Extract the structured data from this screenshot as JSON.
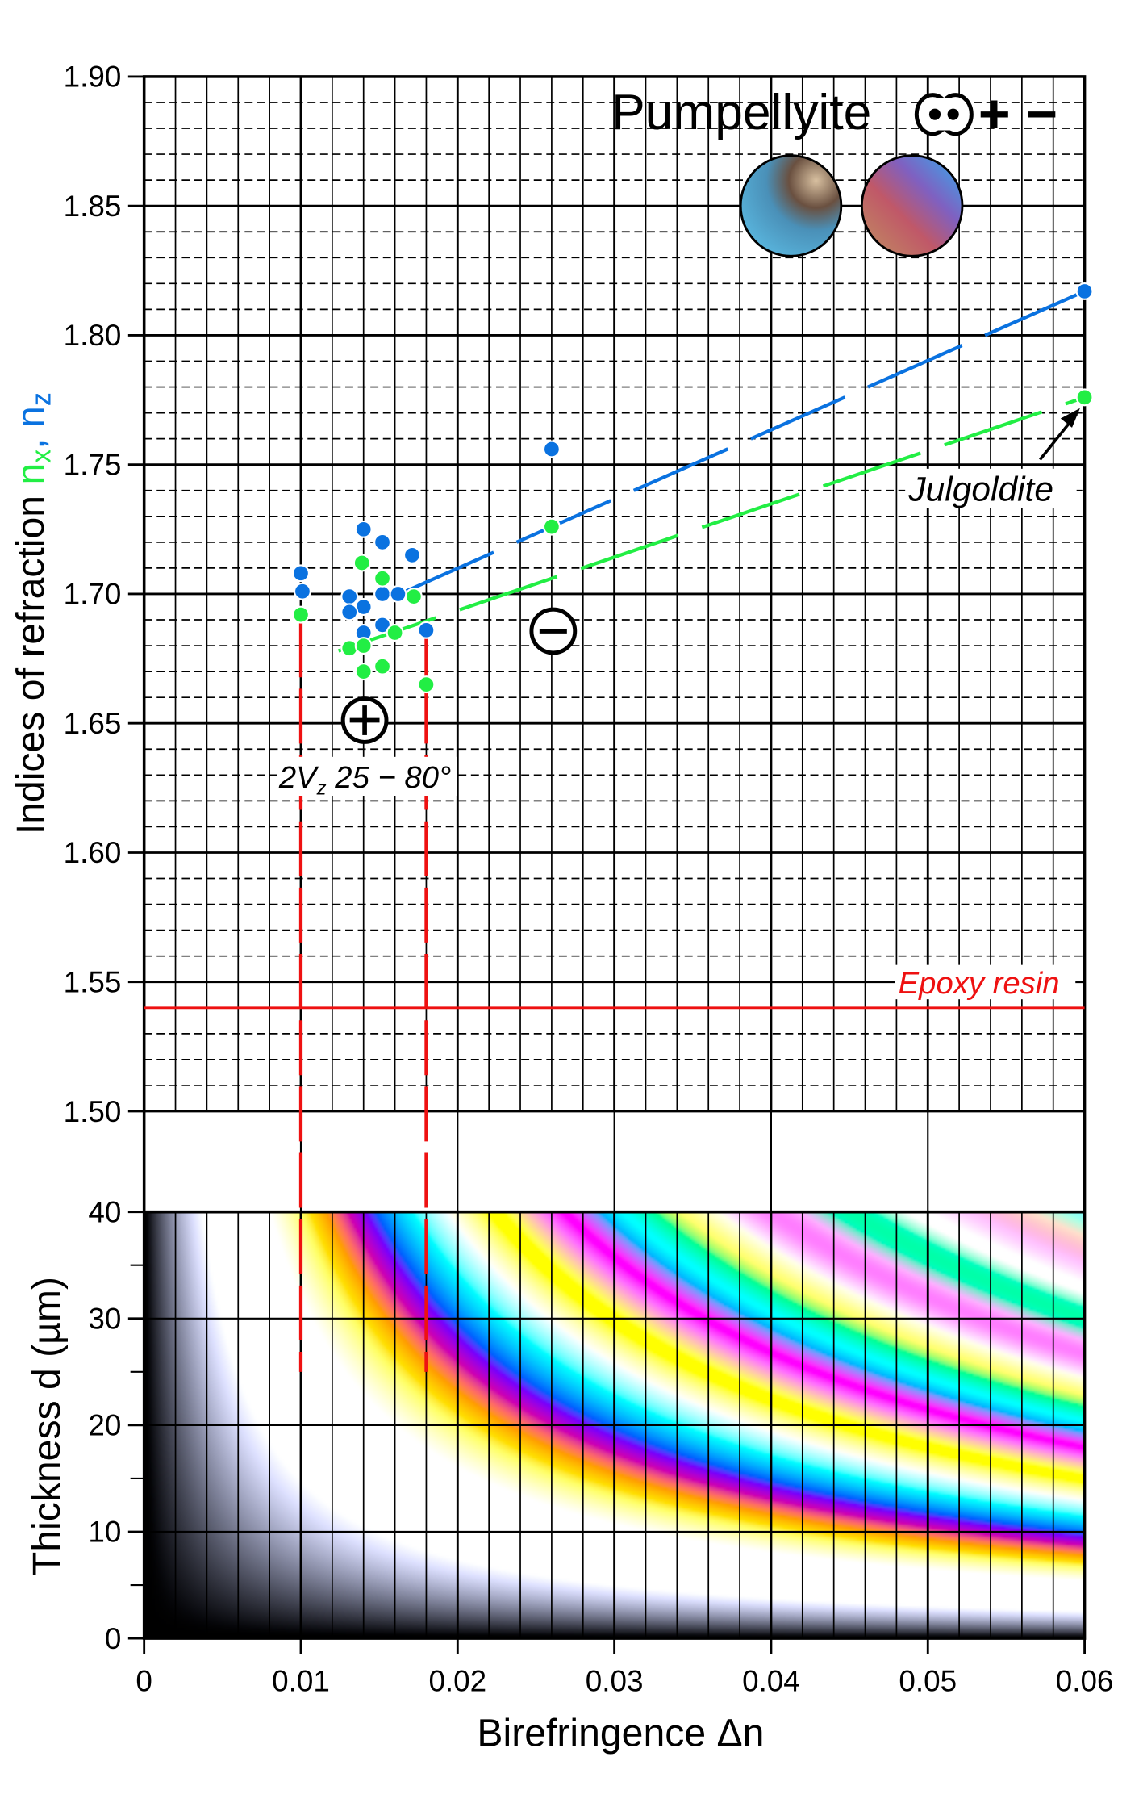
{
  "chart_data": [
    {
      "type": "scatter",
      "title": "Pumpellyite",
      "title_symbols": "+ −",
      "ylabel": "Indices of refraction",
      "ylabel_nx": "n",
      "ylabel_nx_sub": "x",
      "ylabel_sep": ",",
      "ylabel_nz": "n",
      "ylabel_nz_sub": "z",
      "xlim": [
        0,
        0.06
      ],
      "ylim": [
        1.5,
        1.9
      ],
      "yticks": [
        "1.50",
        "1.55",
        "1.60",
        "1.65",
        "1.70",
        "1.75",
        "1.80",
        "1.85",
        "1.90"
      ],
      "grid": true,
      "colors": {
        "nx": "#22ee44",
        "nz": "#0a72e0",
        "epoxy": "#ee1111"
      },
      "series": [
        {
          "key": "nz",
          "points": [
            [
              0.01,
              1.708
            ],
            [
              0.0101,
              1.701
            ],
            [
              0.014,
              1.725
            ],
            [
              0.0152,
              1.72
            ],
            [
              0.0171,
              1.715
            ],
            [
              0.0131,
              1.699
            ],
            [
              0.014,
              1.695
            ],
            [
              0.0131,
              1.693
            ],
            [
              0.0152,
              1.7
            ],
            [
              0.0162,
              1.7
            ],
            [
              0.0152,
              1.688
            ],
            [
              0.014,
              1.685
            ],
            [
              0.018,
              1.686
            ],
            [
              0.026,
              1.756
            ],
            [
              0.06,
              1.817
            ]
          ]
        },
        {
          "key": "nx",
          "points": [
            [
              0.01,
              1.692
            ],
            [
              0.0139,
              1.712
            ],
            [
              0.0152,
              1.706
            ],
            [
              0.0172,
              1.699
            ],
            [
              0.016,
              1.685
            ],
            [
              0.0131,
              1.679
            ],
            [
              0.014,
              1.68
            ],
            [
              0.014,
              1.67
            ],
            [
              0.0152,
              1.672
            ],
            [
              0.018,
              1.665
            ],
            [
              0.026,
              1.726
            ],
            [
              0.06,
              1.776
            ]
          ]
        }
      ],
      "trend_lines": [
        {
          "key": "nz",
          "from": [
            0.0163,
            1.7
          ],
          "to": [
            0.06,
            1.817
          ]
        },
        {
          "key": "nx",
          "from": [
            0.0124,
            1.678
          ],
          "to": [
            0.06,
            1.776
          ]
        }
      ],
      "epoxy_line": {
        "value": 1.54,
        "label": "Epoxy resin"
      },
      "annotations": {
        "julgoldite": "Julgoldite",
        "positive_sign": "+",
        "negative_sign": "−",
        "twoV_prefix": "2V",
        "twoV_sub": "z",
        "twoV_range": " 25 − 80°"
      },
      "range_lines_x": [
        0.01,
        0.018
      ],
      "range_lines_bottom_thickness": 25
    },
    {
      "type": "heatmap",
      "description_type": "michel-levy-interference-colors",
      "xlabel": "Birefringence  Δn",
      "ylabel": "Thickness  d (µm)",
      "xlim": [
        0,
        0.06
      ],
      "ylim": [
        0,
        40
      ],
      "xticks": [
        "0",
        "0.01",
        "0.02",
        "0.03",
        "0.04",
        "0.05",
        "0.06"
      ],
      "yticks": [
        "0",
        "10",
        "20",
        "30",
        "40"
      ]
    }
  ]
}
